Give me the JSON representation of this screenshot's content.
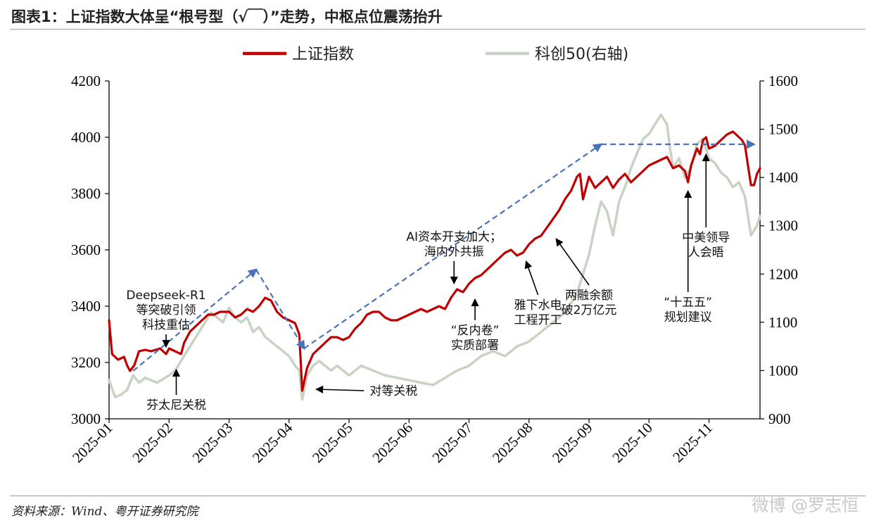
{
  "header": {
    "title": "图表1：上证指数大体呈“根号型（√￣）”走势，中枢点位震荡抬升"
  },
  "footer": {
    "source": "资料来源：Wind、粤开证券研究院",
    "watermark": "微博 @罗志恒"
  },
  "colors": {
    "sse": "#c00000",
    "star50": "#c8d3c3",
    "trend": "#4a72b8",
    "annotation": "#000000"
  },
  "chart_data": {
    "type": "line",
    "title": "",
    "xlabel": "",
    "ylabel": "",
    "y_left_lim": [
      3000,
      4200
    ],
    "y_left_ticks": [
      3000,
      3200,
      3400,
      3600,
      3800,
      4000,
      4200
    ],
    "y_right_lim": [
      900,
      1600
    ],
    "y_right_ticks": [
      900,
      1000,
      1100,
      1200,
      1300,
      1400,
      1500,
      1600
    ],
    "x_lim": [
      0,
      10.85
    ],
    "x_ticks": [
      {
        "x": 0,
        "label": "2025-01"
      },
      {
        "x": 1,
        "label": "2025-02"
      },
      {
        "x": 2,
        "label": "2025-03"
      },
      {
        "x": 3,
        "label": "2025-04"
      },
      {
        "x": 4,
        "label": "2025-05"
      },
      {
        "x": 5,
        "label": "2025-06"
      },
      {
        "x": 6,
        "label": "2025-07"
      },
      {
        "x": 7,
        "label": "2025-08"
      },
      {
        "x": 8,
        "label": "2025-09"
      },
      {
        "x": 9,
        "label": "2025-10"
      },
      {
        "x": 10,
        "label": "2025-11"
      }
    ],
    "legend_position": "top",
    "series": [
      {
        "name": "上证指数",
        "axis": "left",
        "color": "#c00000",
        "points": [
          [
            0,
            3350
          ],
          [
            0.05,
            3230
          ],
          [
            0.15,
            3210
          ],
          [
            0.25,
            3220
          ],
          [
            0.3,
            3190
          ],
          [
            0.35,
            3170
          ],
          [
            0.42,
            3190
          ],
          [
            0.5,
            3240
          ],
          [
            0.6,
            3245
          ],
          [
            0.7,
            3240
          ],
          [
            0.85,
            3250
          ],
          [
            0.95,
            3230
          ],
          [
            1.0,
            3250
          ],
          [
            1.1,
            3240
          ],
          [
            1.2,
            3230
          ],
          [
            1.25,
            3270
          ],
          [
            1.35,
            3310
          ],
          [
            1.45,
            3330
          ],
          [
            1.55,
            3350
          ],
          [
            1.65,
            3370
          ],
          [
            1.75,
            3370
          ],
          [
            1.85,
            3380
          ],
          [
            2.0,
            3380
          ],
          [
            2.1,
            3360
          ],
          [
            2.2,
            3370
          ],
          [
            2.3,
            3390
          ],
          [
            2.4,
            3380
          ],
          [
            2.5,
            3400
          ],
          [
            2.6,
            3430
          ],
          [
            2.7,
            3420
          ],
          [
            2.8,
            3380
          ],
          [
            2.9,
            3360
          ],
          [
            3.0,
            3350
          ],
          [
            3.1,
            3340
          ],
          [
            3.17,
            3300
          ],
          [
            3.22,
            3100
          ],
          [
            3.3,
            3180
          ],
          [
            3.4,
            3230
          ],
          [
            3.5,
            3250
          ],
          [
            3.6,
            3270
          ],
          [
            3.7,
            3290
          ],
          [
            3.8,
            3290
          ],
          [
            3.9,
            3280
          ],
          [
            4.0,
            3290
          ],
          [
            4.1,
            3320
          ],
          [
            4.2,
            3340
          ],
          [
            4.3,
            3370
          ],
          [
            4.4,
            3380
          ],
          [
            4.5,
            3380
          ],
          [
            4.6,
            3360
          ],
          [
            4.7,
            3350
          ],
          [
            4.8,
            3350
          ],
          [
            4.9,
            3360
          ],
          [
            5.0,
            3370
          ],
          [
            5.1,
            3380
          ],
          [
            5.2,
            3390
          ],
          [
            5.3,
            3380
          ],
          [
            5.4,
            3390
          ],
          [
            5.5,
            3400
          ],
          [
            5.6,
            3390
          ],
          [
            5.7,
            3430
          ],
          [
            5.8,
            3460
          ],
          [
            5.9,
            3450
          ],
          [
            6.0,
            3480
          ],
          [
            6.1,
            3500
          ],
          [
            6.2,
            3510
          ],
          [
            6.3,
            3530
          ],
          [
            6.4,
            3550
          ],
          [
            6.5,
            3570
          ],
          [
            6.6,
            3590
          ],
          [
            6.7,
            3600
          ],
          [
            6.8,
            3580
          ],
          [
            6.9,
            3590
          ],
          [
            7.0,
            3620
          ],
          [
            7.1,
            3640
          ],
          [
            7.2,
            3650
          ],
          [
            7.3,
            3680
          ],
          [
            7.4,
            3710
          ],
          [
            7.5,
            3740
          ],
          [
            7.6,
            3780
          ],
          [
            7.7,
            3810
          ],
          [
            7.8,
            3860
          ],
          [
            7.85,
            3870
          ],
          [
            7.9,
            3780
          ],
          [
            8.0,
            3860
          ],
          [
            8.1,
            3820
          ],
          [
            8.2,
            3840
          ],
          [
            8.3,
            3860
          ],
          [
            8.4,
            3820
          ],
          [
            8.5,
            3850
          ],
          [
            8.6,
            3870
          ],
          [
            8.7,
            3840
          ],
          [
            8.8,
            3860
          ],
          [
            8.9,
            3880
          ],
          [
            9.0,
            3900
          ],
          [
            9.1,
            3910
          ],
          [
            9.2,
            3920
          ],
          [
            9.3,
            3930
          ],
          [
            9.4,
            3890
          ],
          [
            9.5,
            3900
          ],
          [
            9.6,
            3880
          ],
          [
            9.65,
            3840
          ],
          [
            9.7,
            3900
          ],
          [
            9.8,
            3960
          ],
          [
            9.85,
            3940
          ],
          [
            9.9,
            3990
          ],
          [
            9.95,
            4000
          ],
          [
            10.0,
            3960
          ],
          [
            10.1,
            3970
          ],
          [
            10.2,
            3990
          ],
          [
            10.3,
            4010
          ],
          [
            10.4,
            4020
          ],
          [
            10.5,
            4000
          ],
          [
            10.55,
            3990
          ],
          [
            10.6,
            3970
          ],
          [
            10.65,
            3900
          ],
          [
            10.7,
            3830
          ],
          [
            10.75,
            3830
          ],
          [
            10.8,
            3870
          ],
          [
            10.85,
            3890
          ]
        ]
      },
      {
        "name": "科创50(右轴)",
        "axis": "right",
        "color": "#c8d3c3",
        "points": [
          [
            0,
            980
          ],
          [
            0.1,
            945
          ],
          [
            0.2,
            950
          ],
          [
            0.3,
            960
          ],
          [
            0.4,
            990
          ],
          [
            0.5,
            975
          ],
          [
            0.6,
            985
          ],
          [
            0.8,
            975
          ],
          [
            1.0,
            990
          ],
          [
            1.1,
            1000
          ],
          [
            1.2,
            1020
          ],
          [
            1.3,
            1040
          ],
          [
            1.4,
            1060
          ],
          [
            1.5,
            1080
          ],
          [
            1.6,
            1100
          ],
          [
            1.7,
            1120
          ],
          [
            1.8,
            1110
          ],
          [
            1.9,
            1100
          ],
          [
            2.0,
            1130
          ],
          [
            2.1,
            1110
          ],
          [
            2.2,
            1100
          ],
          [
            2.3,
            1110
          ],
          [
            2.4,
            1080
          ],
          [
            2.5,
            1090
          ],
          [
            2.6,
            1070
          ],
          [
            2.7,
            1060
          ],
          [
            2.8,
            1050
          ],
          [
            2.9,
            1040
          ],
          [
            3.0,
            1030
          ],
          [
            3.1,
            1010
          ],
          [
            3.17,
            1000
          ],
          [
            3.22,
            940
          ],
          [
            3.3,
            990
          ],
          [
            3.4,
            1010
          ],
          [
            3.5,
            1020
          ],
          [
            3.6,
            1010
          ],
          [
            3.7,
            1000
          ],
          [
            3.8,
            1010
          ],
          [
            3.9,
            1000
          ],
          [
            4.0,
            990
          ],
          [
            4.2,
            1010
          ],
          [
            4.4,
            1000
          ],
          [
            4.6,
            990
          ],
          [
            4.8,
            985
          ],
          [
            5.0,
            980
          ],
          [
            5.2,
            975
          ],
          [
            5.4,
            970
          ],
          [
            5.6,
            985
          ],
          [
            5.8,
            1000
          ],
          [
            6.0,
            1010
          ],
          [
            6.2,
            1030
          ],
          [
            6.4,
            1040
          ],
          [
            6.6,
            1030
          ],
          [
            6.8,
            1050
          ],
          [
            7.0,
            1060
          ],
          [
            7.2,
            1080
          ],
          [
            7.4,
            1100
          ],
          [
            7.6,
            1120
          ],
          [
            7.8,
            1160
          ],
          [
            8.0,
            1240
          ],
          [
            8.1,
            1300
          ],
          [
            8.2,
            1350
          ],
          [
            8.3,
            1330
          ],
          [
            8.4,
            1280
          ],
          [
            8.5,
            1350
          ],
          [
            8.6,
            1380
          ],
          [
            8.7,
            1420
          ],
          [
            8.8,
            1450
          ],
          [
            8.9,
            1480
          ],
          [
            9.0,
            1490
          ],
          [
            9.1,
            1510
          ],
          [
            9.2,
            1530
          ],
          [
            9.3,
            1510
          ],
          [
            9.35,
            1460
          ],
          [
            9.4,
            1420
          ],
          [
            9.5,
            1440
          ],
          [
            9.6,
            1400
          ],
          [
            9.7,
            1420
          ],
          [
            9.8,
            1470
          ],
          [
            9.9,
            1480
          ],
          [
            10.0,
            1440
          ],
          [
            10.1,
            1430
          ],
          [
            10.2,
            1410
          ],
          [
            10.3,
            1400
          ],
          [
            10.4,
            1380
          ],
          [
            10.5,
            1390
          ],
          [
            10.6,
            1360
          ],
          [
            10.7,
            1280
          ],
          [
            10.8,
            1300
          ],
          [
            10.85,
            1320
          ]
        ]
      }
    ],
    "trendlines": [
      {
        "points": [
          [
            0.4,
            3170
          ],
          [
            2.45,
            3530
          ]
        ]
      },
      {
        "points": [
          [
            2.45,
            3530
          ],
          [
            3.25,
            3250
          ]
        ]
      },
      {
        "points": [
          [
            3.25,
            3250
          ],
          [
            8.2,
            3975
          ]
        ]
      },
      {
        "points": [
          [
            8.2,
            3975
          ],
          [
            10.75,
            3975
          ]
        ]
      }
    ],
    "annotations": [
      {
        "lines": [
          "Deepseek-R1",
          "等突破引领",
          "科技重估"
        ],
        "arrow_from": [
          0.95,
          3300
        ],
        "arrow_to": [
          0.95,
          3255
        ]
      },
      {
        "lines": [
          "芬太尼关税"
        ],
        "arrow_from": [
          1.12,
          3085
        ],
        "arrow_to": [
          1.12,
          3175
        ]
      },
      {
        "lines": [
          "对等关税"
        ],
        "arrow_from": [
          4.25,
          3100
        ],
        "arrow_to": [
          3.45,
          3105
        ]
      },
      {
        "lines": [
          "AI资本开支加大；",
          "海内外共振"
        ],
        "arrow_from": [
          5.75,
          3560
        ],
        "arrow_to": [
          5.75,
          3480
        ]
      },
      {
        "lines": [
          "“反内卷”",
          "实质部署"
        ],
        "arrow_from": [
          6.1,
          3350
        ],
        "arrow_to": [
          6.1,
          3425
        ]
      },
      {
        "lines": [
          "雅下水电",
          "工程开工"
        ],
        "arrow_from": [
          7.15,
          3440
        ],
        "arrow_to": [
          6.95,
          3560
        ]
      },
      {
        "lines": [
          "两融余额",
          "破2万亿元"
        ],
        "arrow_from": [
          8.0,
          3475
        ],
        "arrow_to": [
          7.45,
          3640
        ]
      },
      {
        "lines": [
          "“十五五”",
          "规划建议"
        ],
        "arrow_from": [
          9.65,
          3450
        ],
        "arrow_to": [
          9.65,
          3810
        ]
      },
      {
        "lines": [
          "中美领导",
          "人会晤"
        ],
        "arrow_from": [
          9.95,
          3680
        ],
        "arrow_to": [
          9.95,
          3940
        ]
      }
    ]
  }
}
